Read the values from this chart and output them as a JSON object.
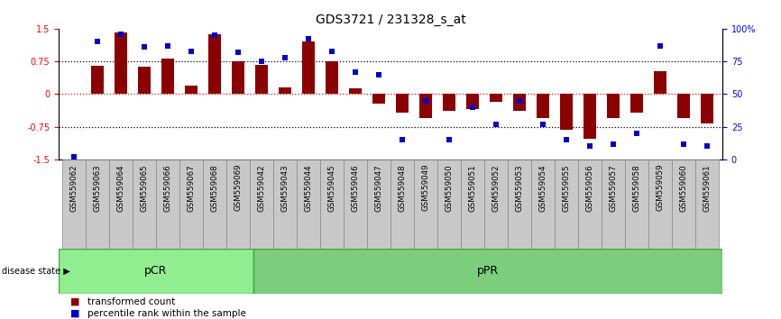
{
  "title": "GDS3721 / 231328_s_at",
  "categories": [
    "GSM559062",
    "GSM559063",
    "GSM559064",
    "GSM559065",
    "GSM559066",
    "GSM559067",
    "GSM559068",
    "GSM559069",
    "GSM559042",
    "GSM559043",
    "GSM559044",
    "GSM559045",
    "GSM559046",
    "GSM559047",
    "GSM559048",
    "GSM559049",
    "GSM559050",
    "GSM559051",
    "GSM559052",
    "GSM559053",
    "GSM559054",
    "GSM559055",
    "GSM559056",
    "GSM559057",
    "GSM559058",
    "GSM559059",
    "GSM559060",
    "GSM559061"
  ],
  "bar_values": [
    0.0,
    0.65,
    1.42,
    0.62,
    0.82,
    0.19,
    1.38,
    0.75,
    0.68,
    0.15,
    1.21,
    0.76,
    0.14,
    -0.22,
    -0.42,
    -0.55,
    -0.38,
    -0.35,
    -0.17,
    -0.38,
    -0.55,
    -0.82,
    -1.02,
    -0.55,
    -0.42,
    0.53,
    -0.55,
    -0.68
  ],
  "percentile_values": [
    2,
    90,
    96,
    86,
    87,
    83,
    95,
    82,
    75,
    78,
    92,
    83,
    67,
    65,
    15,
    45,
    15,
    40,
    27,
    45,
    27,
    15,
    10,
    12,
    20,
    87,
    12,
    10
  ],
  "pcr_count": 8,
  "ppr_count": 20,
  "bar_color": "#8B0000",
  "dot_color": "#0000CD",
  "ylim_left": [
    -1.5,
    1.5
  ],
  "ylim_right": [
    0,
    100
  ],
  "yticks_left": [
    -1.5,
    -0.75,
    0.0,
    0.75,
    1.5
  ],
  "ytick_labels_left": [
    "-1.5",
    "-0.75",
    "0",
    "0.75",
    "1.5"
  ],
  "yticks_right_pct": [
    0,
    25,
    50,
    75,
    100
  ],
  "ytick_labels_right": [
    "0",
    "25",
    "50",
    "75",
    "100%"
  ],
  "hlines_dotted": [
    0.75,
    -0.75
  ],
  "pcr_color": "#90EE90",
  "ppr_color": "#7CCD7C",
  "group_border_color": "#3da83d",
  "tick_label_bg": "#c8c8c8",
  "legend_bar_label": "transformed count",
  "legend_dot_label": "percentile rank within the sample",
  "disease_state_text": "disease state",
  "title_fontsize": 10,
  "tick_fontsize": 7,
  "label_fontsize": 7.5
}
